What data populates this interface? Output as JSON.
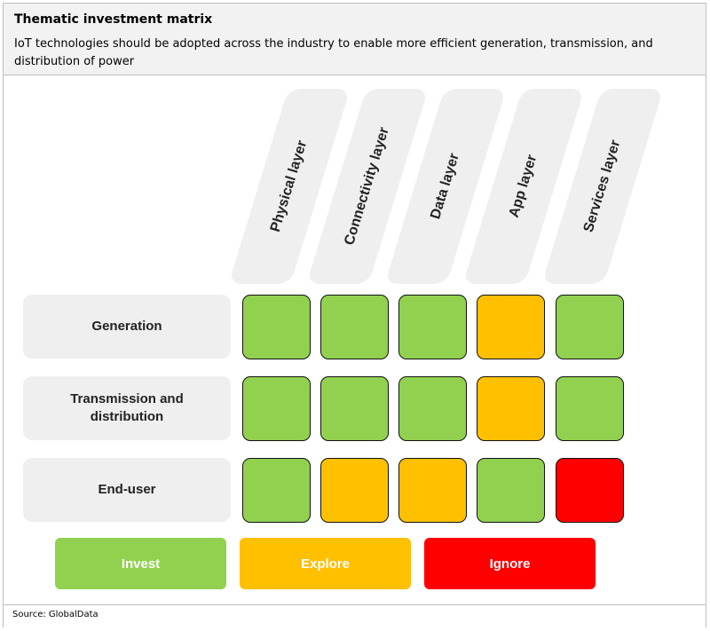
{
  "header": {
    "title": "Thematic investment matrix",
    "subtitle": "IoT technologies should be adopted across the industry to enable more efficient generation, transmission, and distribution of power"
  },
  "columns": [
    "Physical layer",
    "Connectivity layer",
    "Data layer",
    "App layer",
    "Services layer"
  ],
  "rows": [
    {
      "label": "Generation",
      "ratings": [
        "invest",
        "invest",
        "invest",
        "explore",
        "invest"
      ]
    },
    {
      "label": "Transmission and\ndistribution",
      "ratings": [
        "invest",
        "invest",
        "invest",
        "explore",
        "invest"
      ]
    },
    {
      "label": "End-user",
      "ratings": [
        "invest",
        "explore",
        "explore",
        "invest",
        "ignore"
      ]
    }
  ],
  "legend": [
    {
      "key": "invest",
      "label": "Invest",
      "color": "#92d050"
    },
    {
      "key": "explore",
      "label": "Explore",
      "color": "#ffc000"
    },
    {
      "key": "ignore",
      "label": "Ignore",
      "color": "#ff0000"
    }
  ],
  "footer": {
    "source": "Source: GlobalData"
  }
}
